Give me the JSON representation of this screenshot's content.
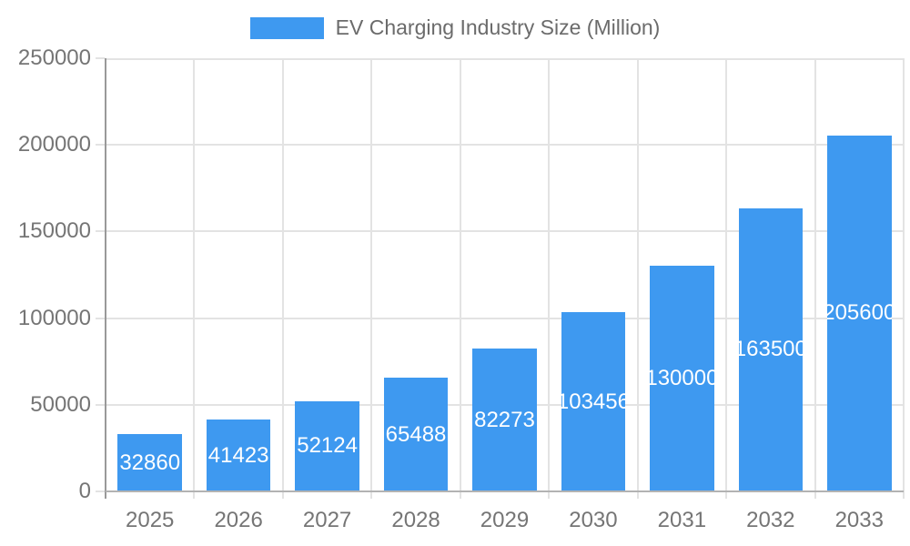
{
  "chart_data": {
    "type": "bar",
    "title": "EV Charging Industry Size (Million)",
    "categories": [
      "2025",
      "2026",
      "2027",
      "2028",
      "2029",
      "2030",
      "2031",
      "2032",
      "2033"
    ],
    "values": [
      32860,
      41423,
      52124,
      65488,
      82273,
      103456,
      130000,
      163500,
      205600
    ],
    "bar_labels": [
      32860,
      41423,
      52124,
      65488,
      82273,
      103456,
      130000,
      163500,
      205600
    ],
    "xlabel": "",
    "ylabel": "",
    "ylim": [
      0,
      250000
    ],
    "yticks": [
      0,
      50000,
      100000,
      150000,
      200000,
      250000
    ],
    "grid": true,
    "legend_position": "top",
    "style": {
      "bar_color": "#3E99F0",
      "bar_label_color": "#FFFFFF",
      "grid_color": "#E3E3E3",
      "axis_line_color": "#999999",
      "baseline_color": "#B3B3B3",
      "tick_label_color": "#757575",
      "legend_text_color": "#6B6B6B",
      "background": "#FFFFFF"
    }
  }
}
